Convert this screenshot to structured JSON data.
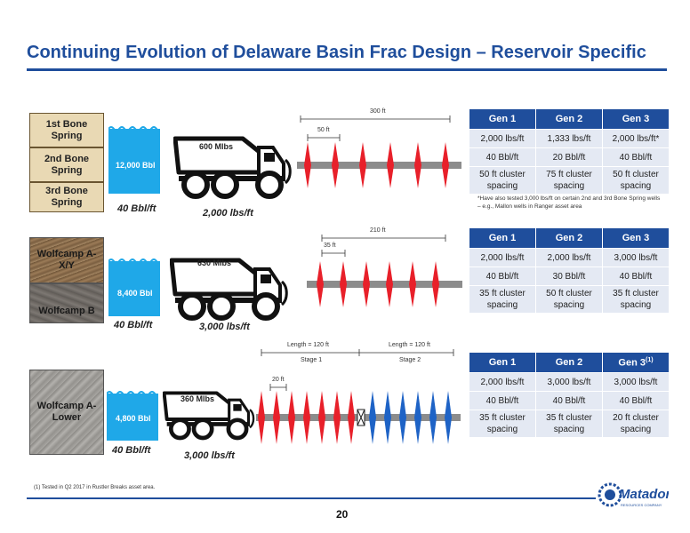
{
  "header": {
    "title": "Continuing Evolution of Delaware Basin Frac Design – Reservoir Specific"
  },
  "footer": {
    "footnote": "(1)  Tested in Q2 2017 in Rustler Breaks asset area.",
    "page_number": "20",
    "logo_text": "Matador",
    "logo_subtext": "RESOURCES COMPANY"
  },
  "sections": [
    {
      "layers": [
        "1st Bone Spring",
        "2nd Bone Spring",
        "3rd Bone Spring"
      ],
      "water_volume": "12,000 Bbl",
      "fluid_rate": "40 Bbl/ft",
      "truck_load": "600 Mlbs",
      "proppant_rate": "2,000 lbs/ft",
      "dimensions": {
        "total": "300 ft",
        "cluster": "50 ft"
      },
      "table": {
        "headers": [
          "Gen 1",
          "Gen 2",
          "Gen 3"
        ],
        "rows": [
          [
            "2,000 lbs/ft",
            "1,333 lbs/ft",
            "2,000 lbs/ft*"
          ],
          [
            "40 Bbl/ft",
            "20 Bbl/ft",
            "40 Bbl/ft"
          ],
          [
            "50 ft cluster spacing",
            "75 ft cluster spacing",
            "50 ft cluster spacing"
          ]
        ]
      },
      "note": "*Have also tested 3,000 lbs/ft on certain 2nd and 3rd Bone Spring wells – e.g., Mallon wells in Ranger asset area"
    },
    {
      "layers": [
        "Wolfcamp A-X/Y",
        "Wolfcamp B"
      ],
      "water_volume": "8,400 Bbl",
      "fluid_rate": "40 Bbl/ft",
      "truck_load": "630 Mlbs",
      "proppant_rate": "3,000 lbs/ft",
      "dimensions": {
        "total": "210 ft",
        "cluster": "35 ft"
      },
      "table": {
        "headers": [
          "Gen 1",
          "Gen 2",
          "Gen 3"
        ],
        "rows": [
          [
            "2,000 lbs/ft",
            "2,000 lbs/ft",
            "3,000 lbs/ft"
          ],
          [
            "40 Bbl/ft",
            "30 Bbl/ft",
            "40 Bbl/ft"
          ],
          [
            "35 ft cluster spacing",
            "50 ft cluster spacing",
            "35 ft cluster spacing"
          ]
        ]
      }
    },
    {
      "layers": [
        "Wolfcamp A-Lower"
      ],
      "water_volume": "4,800 Bbl",
      "fluid_rate": "40 Bbl/ft",
      "truck_load": "360 Mlbs",
      "proppant_rate": "3,000 lbs/ft",
      "dimensions": {
        "stage1_length": "Length = 120 ft",
        "stage2_length": "Length = 120 ft",
        "stage1": "Stage 1",
        "stage2": "Stage 2",
        "cluster": "20 ft"
      },
      "table": {
        "headers": [
          "Gen 1",
          "Gen 2",
          "Gen 3"
        ],
        "gen3_superscript": "(1)",
        "rows": [
          [
            "2,000 lbs/ft",
            "3,000 lbs/ft",
            "3,000 lbs/ft"
          ],
          [
            "40 Bbl/ft",
            "40 Bbl/ft",
            "40 Bbl/ft"
          ],
          [
            "35 ft cluster spacing",
            "35 ft cluster spacing",
            "20 ft cluster spacing"
          ]
        ]
      }
    }
  ],
  "colors": {
    "brand_blue": "#1f4e9c",
    "water": "#1fa8e8",
    "frac_red": "#e8202a",
    "frac_blue": "#1e63c6",
    "pipe": "#8c8c8c"
  }
}
